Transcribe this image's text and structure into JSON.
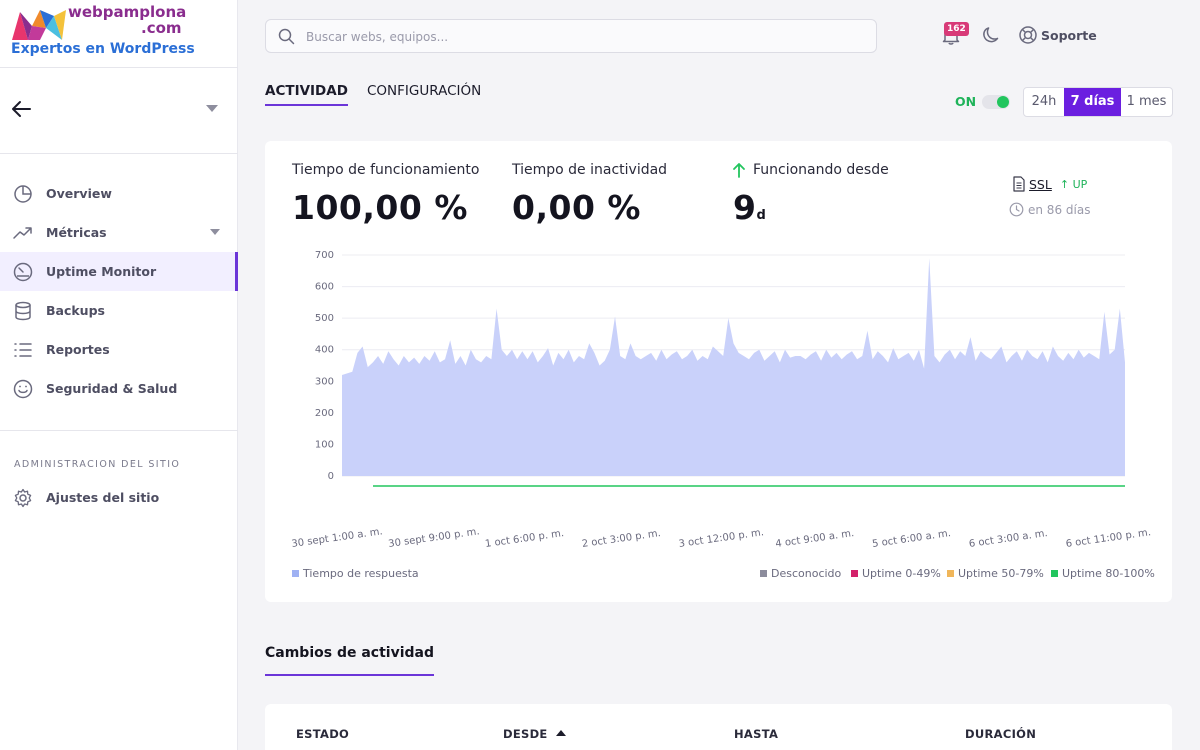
{
  "brand": {
    "name": "webpamplona",
    "domain": ".com",
    "tagline": "Expertos en WordPress"
  },
  "sidebar": {
    "items": [
      {
        "label": "Overview",
        "icon": "pie-chart-icon"
      },
      {
        "label": "Métricas",
        "icon": "trend-icon"
      },
      {
        "label": "Uptime Monitor",
        "icon": "gauge-icon",
        "active": true
      },
      {
        "label": "Backups",
        "icon": "database-icon"
      },
      {
        "label": "Reportes",
        "icon": "list-icon"
      },
      {
        "label": "Seguridad & Salud",
        "icon": "smile-icon"
      }
    ],
    "section_title": "ADMINISTRACION DEL SITIO",
    "admin_items": [
      {
        "label": "Ajustes del sitio",
        "icon": "gear-icon"
      }
    ]
  },
  "topbar": {
    "search_placeholder": "Buscar webs, equipos...",
    "notifications_count": "162",
    "support_label": "Soporte"
  },
  "tabs": [
    {
      "label": "ACTIVIDAD",
      "active": true
    },
    {
      "label": "CONFIGURACIÓN",
      "active": false
    }
  ],
  "monitor_toggle": {
    "label": "ON",
    "on": true
  },
  "range": {
    "options": [
      "24h",
      "7 días",
      "1 mes"
    ],
    "selected": "7 días"
  },
  "stats": {
    "uptime_label": "Tiempo de funcionamiento",
    "uptime_value": "100,00 %",
    "downtime_label": "Tiempo de inactividad",
    "downtime_value": "0,00 %",
    "running_label": "Funcionando desde",
    "running_value": "9",
    "running_unit": "d"
  },
  "ssl": {
    "label": "SSL",
    "status": "UP",
    "expires": "en 86 días"
  },
  "colors": {
    "accent": "#6b35d8",
    "area_fill": "#c9d1fa",
    "uptime_line": "#22c55e",
    "unknown": "#8c8c9c",
    "uptime_0_49": "#d3226b",
    "uptime_50_79": "#f0b65a",
    "uptime_80_100": "#22c55e"
  },
  "chart_data": {
    "type": "area",
    "title": "",
    "xlabel": "",
    "ylabel": "",
    "ylim": [
      0,
      700
    ],
    "yticks": [
      0,
      100,
      200,
      300,
      400,
      500,
      600,
      700
    ],
    "grid": true,
    "x_tick_labels": [
      "30 sept 1:00 a. m.",
      "30 sept 9:00 p. m.",
      "1 oct 6:00 p. m.",
      "2 oct 3:00 p. m.",
      "3 oct 12:00 p. m.",
      "4 oct 9:00 a. m.",
      "5 oct 6:00 a. m.",
      "6 oct 3:00 a. m.",
      "6 oct 11:00 p. m."
    ],
    "series": [
      {
        "name": "Tiempo de respuesta",
        "values": [
          320,
          325,
          330,
          390,
          410,
          345,
          360,
          380,
          355,
          395,
          370,
          350,
          380,
          360,
          375,
          355,
          380,
          365,
          395,
          360,
          370,
          430,
          355,
          380,
          350,
          400,
          370,
          360,
          380,
          370,
          530,
          400,
          380,
          400,
          370,
          395,
          370,
          395,
          360,
          380,
          405,
          350,
          390,
          370,
          400,
          360,
          380,
          370,
          420,
          390,
          350,
          365,
          400,
          505,
          380,
          370,
          420,
          380,
          370,
          380,
          390,
          365,
          400,
          370,
          385,
          395,
          370,
          380,
          400,
          365,
          380,
          370,
          410,
          395,
          380,
          500,
          420,
          390,
          380,
          370,
          390,
          400,
          365,
          380,
          395,
          360,
          400,
          375,
          380,
          380,
          370,
          385,
          395,
          365,
          400,
          375,
          390,
          370,
          385,
          395,
          370,
          380,
          460,
          370,
          395,
          380,
          360,
          405,
          370,
          380,
          390,
          365,
          400,
          340,
          690,
          380,
          360,
          385,
          400,
          370,
          395,
          380,
          440,
          365,
          395,
          380,
          370,
          390,
          410,
          360,
          380,
          395,
          365,
          400,
          380,
          370,
          395,
          360,
          410,
          380,
          365,
          390,
          370,
          400,
          375,
          390,
          380,
          370,
          520,
          385,
          400,
          530,
          360
        ],
        "color": "#c9d1fa"
      }
    ]
  },
  "legend": {
    "response": "Tiempo de respuesta",
    "unknown": "Desconocido",
    "u0_49": "Uptime 0-49%",
    "u50_79": "Uptime 50-79%",
    "u80_100": "Uptime 80-100%"
  },
  "activity": {
    "title": "Cambios de actividad",
    "columns": [
      "ESTADO",
      "DESDE",
      "HASTA",
      "DURACIÓN"
    ]
  }
}
